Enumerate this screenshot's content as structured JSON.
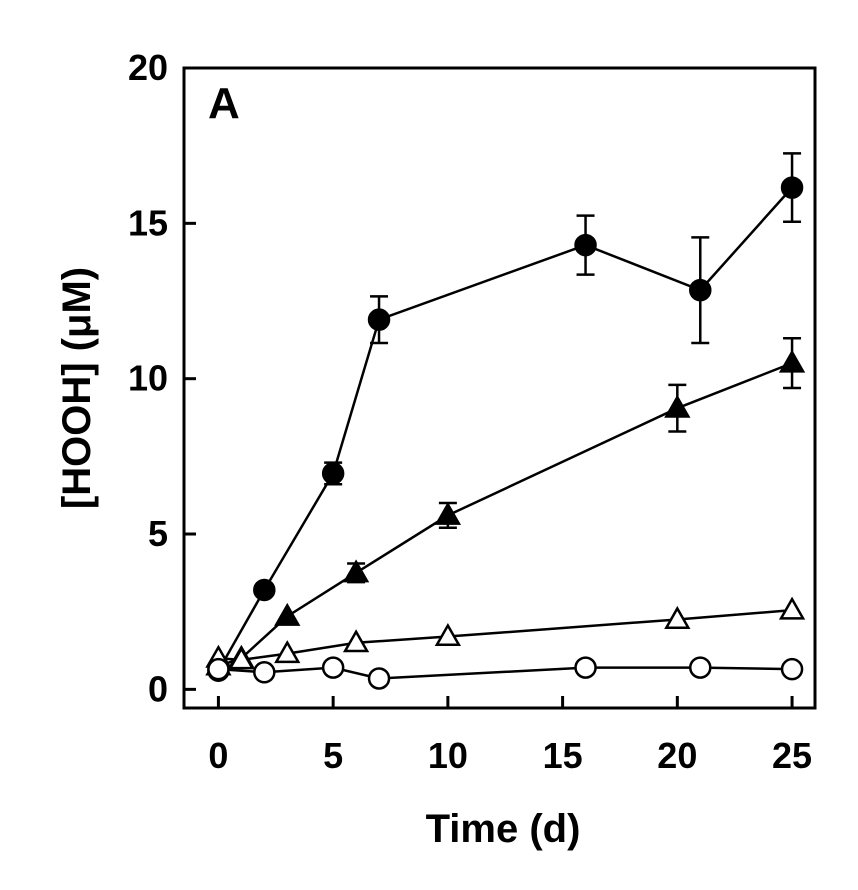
{
  "chart_data": {
    "type": "scatter",
    "panel_label": "A",
    "xlabel": "Time (d)",
    "ylabel": "[HOOH] (μM)",
    "xlim": [
      -1.5,
      26
    ],
    "ylim": [
      -0.6,
      20
    ],
    "xticks": [
      0,
      5,
      10,
      15,
      20,
      25
    ],
    "yticks": [
      0,
      5,
      10,
      15,
      20
    ],
    "grid": false,
    "series": [
      {
        "marker": "circle-filled",
        "x": [
          0,
          2,
          5,
          7,
          16,
          21,
          25
        ],
        "y": [
          0.6,
          3.2,
          6.95,
          11.9,
          14.3,
          12.85,
          16.15
        ],
        "err": [
          0,
          0,
          0.35,
          0.75,
          0.95,
          1.7,
          1.1
        ]
      },
      {
        "marker": "triangle-filled",
        "x": [
          0,
          1,
          3,
          6,
          10,
          20,
          25
        ],
        "y": [
          0.75,
          1.0,
          2.35,
          3.75,
          5.6,
          9.05,
          10.5
        ],
        "err": [
          0,
          0,
          0,
          0.3,
          0.4,
          0.75,
          0.8
        ]
      },
      {
        "marker": "triangle-open",
        "x": [
          0,
          1,
          3,
          6,
          10,
          20,
          25
        ],
        "y": [
          1.0,
          0.95,
          1.15,
          1.5,
          1.7,
          2.25,
          2.55
        ],
        "err": [
          0,
          0,
          0,
          0,
          0,
          0,
          0
        ]
      },
      {
        "marker": "circle-open",
        "x": [
          0,
          2,
          5,
          7,
          16,
          21,
          25
        ],
        "y": [
          0.65,
          0.55,
          0.7,
          0.35,
          0.7,
          0.7,
          0.65
        ],
        "err": [
          0,
          0,
          0,
          0,
          0,
          0,
          0
        ]
      }
    ]
  }
}
